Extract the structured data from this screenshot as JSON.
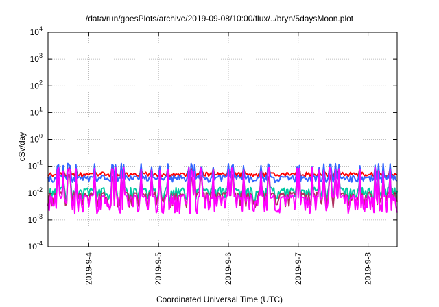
{
  "chart_data": {
    "type": "line",
    "title": "/data/run/goesPlots/archive/2019-09-08/10:00/flux/../bryn/5daysMoon.plot",
    "xlabel": "Coordinated Universal Time (UTC)",
    "ylabel": "cSv/day",
    "yscale": "log",
    "ylim": [
      0.0001,
      10000
    ],
    "y_ticks": [
      {
        "value": 0.0001,
        "base": "10",
        "exp": "-4"
      },
      {
        "value": 0.001,
        "base": "10",
        "exp": "-3"
      },
      {
        "value": 0.01,
        "base": "10",
        "exp": "-2"
      },
      {
        "value": 0.1,
        "base": "10",
        "exp": "-1"
      },
      {
        "value": 1,
        "base": "10",
        "exp": "0"
      },
      {
        "value": 10,
        "base": "10",
        "exp": "1"
      },
      {
        "value": 100,
        "base": "10",
        "exp": "2"
      },
      {
        "value": 1000,
        "base": "10",
        "exp": "3"
      },
      {
        "value": 10000,
        "base": "10",
        "exp": "4"
      }
    ],
    "xlim": [
      "2019-09-03 10:00",
      "2019-09-08 10:00"
    ],
    "x_ticks": [
      {
        "value": "2019-09-04 00:00",
        "label": "2019-9-4"
      },
      {
        "value": "2019-09-05 00:00",
        "label": "2019-9-5"
      },
      {
        "value": "2019-09-06 00:00",
        "label": "2019-9-6"
      },
      {
        "value": "2019-09-07 00:00",
        "label": "2019-9-7"
      },
      {
        "value": "2019-09-08 00:00",
        "label": "2019-9-8"
      }
    ],
    "grid": true,
    "series": [
      {
        "color": "#ff0000",
        "base": 0.052,
        "amp": 1.3,
        "spike": 0.09
      },
      {
        "color": "#3366ff",
        "base": 0.04,
        "amp": 1.6,
        "spike": 0.13
      },
      {
        "color": "#00c8a0",
        "base": 0.014,
        "amp": 3.0,
        "spike": 0.05
      },
      {
        "color": "#b03060",
        "base": 0.0095,
        "amp": 3.2,
        "spike": 0.05
      },
      {
        "color": "#ff00ff",
        "base": 0.0075,
        "amp": 4.5,
        "spike": 0.09
      }
    ]
  }
}
